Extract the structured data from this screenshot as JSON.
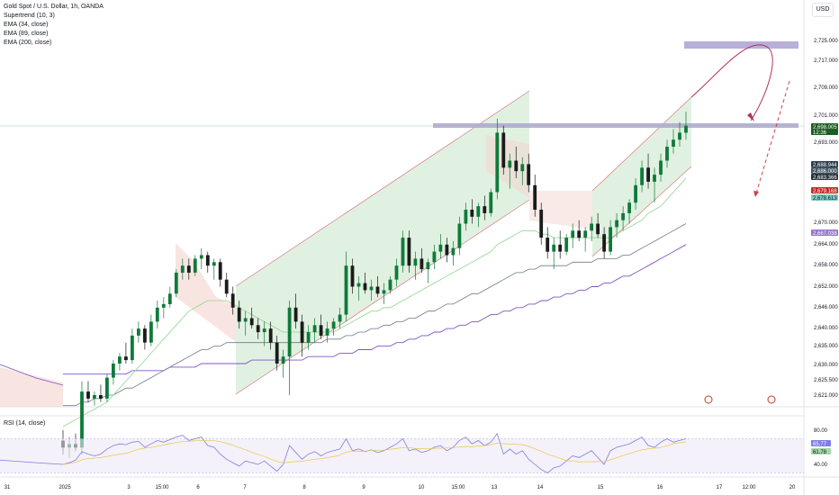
{
  "symbol_title": "Gold Spot / U.S. Dollar, 1h, OANDA",
  "currency": "USD",
  "indicators": [
    "Supertrend (10, 3)",
    "EMA (34, close)",
    "EMA (89, close)",
    "EMA (200, close)"
  ],
  "rsi_title": "RSI (14, close)",
  "colors": {
    "up": "#26a69a",
    "down": "#1b1b1b",
    "up_body": "#0f7a3a",
    "channel_fill": "#c8e6c9",
    "channel_line": "#d77a7a",
    "zone": "#b0a6d6",
    "ema34": "#8fd68f",
    "ema89": "#6d7a8a",
    "ema200": "#7e57c2",
    "rsi": "#7e7ee0"
  },
  "chart_data": {
    "type": "candlestick",
    "title": "Gold Spot / U.S. Dollar, 1h, OANDA",
    "y_ticks": [
      "2,725.000",
      "2,717.000",
      "2,709.000",
      "2,701.000",
      "2,693.000",
      "2,670.000",
      "2,664.000",
      "2,658.000",
      "2,652.000",
      "2,646.000",
      "2,640.000",
      "2,635.000",
      "2,630.000",
      "2,625.500",
      "2,621.000"
    ],
    "price_tags": [
      {
        "label": "2,698.005",
        "sub": "12:36",
        "color": "#1b5e20",
        "text_color": "#ffffff"
      },
      {
        "label": "2,688.944",
        "color": "#2e3b4e",
        "text_color": "#ffffff"
      },
      {
        "label": "2,686.000",
        "color": "#455a64",
        "text_color": "#ffffff"
      },
      {
        "label": "2,683.366",
        "color": "#263238",
        "text_color": "#ffffff"
      },
      {
        "label": "2,679.168",
        "color": "#c62828",
        "text_color": "#ffffff"
      },
      {
        "label": "2,678.613",
        "color": "#80cbc4",
        "text_color": "#131722"
      },
      {
        "label": "2,667.038",
        "color": "#9575cd",
        "text_color": "#ffffff"
      }
    ],
    "x_ticks": [
      "31",
      "2025",
      "3",
      "15:00",
      "6",
      "7",
      "8",
      "9",
      "10",
      "15:00",
      "13",
      "14",
      "15",
      "16",
      "17",
      "12:00",
      "20"
    ],
    "rsi_ticks": [
      "80.00",
      "40.00"
    ],
    "rsi_tags": [
      {
        "label": "65.77",
        "color": "#7e7ee0"
      },
      {
        "label": "61.78",
        "color": "#a5d6a7"
      }
    ],
    "candles": [
      [
        2608,
        2611,
        2604,
        2606
      ],
      [
        2606,
        2609,
        2603,
        2607
      ],
      [
        2607,
        2610,
        2605,
        2606
      ],
      [
        2606,
        2625,
        2604,
        2622
      ],
      [
        2622,
        2625,
        2619,
        2620
      ],
      [
        2620,
        2622,
        2618,
        2621
      ],
      [
        2621,
        2624,
        2619,
        2620
      ],
      [
        2620,
        2627,
        2619,
        2626
      ],
      [
        2626,
        2631,
        2624,
        2630
      ],
      [
        2630,
        2633,
        2628,
        2632
      ],
      [
        2632,
        2636,
        2630,
        2631
      ],
      [
        2631,
        2640,
        2630,
        2638
      ],
      [
        2638,
        2642,
        2636,
        2640
      ],
      [
        2640,
        2641,
        2634,
        2636
      ],
      [
        2636,
        2644,
        2635,
        2642
      ],
      [
        2642,
        2648,
        2640,
        2646
      ],
      [
        2646,
        2649,
        2643,
        2647
      ],
      [
        2647,
        2652,
        2646,
        2650
      ],
      [
        2650,
        2657,
        2649,
        2656
      ],
      [
        2656,
        2660,
        2654,
        2658
      ],
      [
        2658,
        2660,
        2654,
        2656
      ],
      [
        2656,
        2661,
        2655,
        2660
      ],
      [
        2660,
        2663,
        2657,
        2661
      ],
      [
        2661,
        2662,
        2656,
        2658
      ],
      [
        2658,
        2660,
        2654,
        2659
      ],
      [
        2659,
        2660,
        2652,
        2654
      ],
      [
        2654,
        2656,
        2649,
        2650
      ],
      [
        2650,
        2652,
        2644,
        2646
      ],
      [
        2646,
        2648,
        2640,
        2642
      ],
      [
        2642,
        2645,
        2638,
        2643
      ],
      [
        2643,
        2646,
        2640,
        2641
      ],
      [
        2641,
        2643,
        2637,
        2639
      ],
      [
        2639,
        2642,
        2635,
        2640
      ],
      [
        2640,
        2642,
        2634,
        2636
      ],
      [
        2636,
        2638,
        2628,
        2630
      ],
      [
        2630,
        2634,
        2626,
        2632
      ],
      [
        2632,
        2648,
        2621,
        2646
      ],
      [
        2646,
        2650,
        2640,
        2642
      ],
      [
        2642,
        2644,
        2632,
        2636
      ],
      [
        2636,
        2641,
        2634,
        2639
      ],
      [
        2639,
        2643,
        2636,
        2641
      ],
      [
        2641,
        2644,
        2637,
        2638
      ],
      [
        2638,
        2642,
        2636,
        2640
      ],
      [
        2640,
        2643,
        2638,
        2642
      ],
      [
        2642,
        2646,
        2640,
        2644
      ],
      [
        2644,
        2662,
        2642,
        2658
      ],
      [
        2658,
        2660,
        2650,
        2652
      ],
      [
        2652,
        2655,
        2648,
        2653
      ],
      [
        2653,
        2656,
        2650,
        2651
      ],
      [
        2651,
        2654,
        2648,
        2652
      ],
      [
        2652,
        2655,
        2649,
        2650
      ],
      [
        2650,
        2653,
        2647,
        2651
      ],
      [
        2651,
        2655,
        2650,
        2654
      ],
      [
        2654,
        2660,
        2652,
        2658
      ],
      [
        2658,
        2668,
        2656,
        2666
      ],
      [
        2666,
        2668,
        2656,
        2658
      ],
      [
        2658,
        2662,
        2654,
        2660
      ],
      [
        2660,
        2663,
        2656,
        2657
      ],
      [
        2657,
        2660,
        2653,
        2659
      ],
      [
        2659,
        2664,
        2657,
        2662
      ],
      [
        2662,
        2667,
        2660,
        2664
      ],
      [
        2664,
        2666,
        2659,
        2661
      ],
      [
        2661,
        2665,
        2658,
        2663
      ],
      [
        2663,
        2672,
        2661,
        2670
      ],
      [
        2670,
        2676,
        2668,
        2674
      ],
      [
        2674,
        2677,
        2670,
        2672
      ],
      [
        2672,
        2676,
        2669,
        2675
      ],
      [
        2675,
        2678,
        2671,
        2673
      ],
      [
        2673,
        2680,
        2672,
        2679
      ],
      [
        2679,
        2700,
        2677,
        2696
      ],
      [
        2696,
        2698,
        2684,
        2686
      ],
      [
        2686,
        2690,
        2680,
        2688
      ],
      [
        2688,
        2692,
        2683,
        2685
      ],
      [
        2685,
        2689,
        2681,
        2687
      ],
      [
        2687,
        2690,
        2679,
        2681
      ],
      [
        2681,
        2684,
        2672,
        2674
      ],
      [
        2674,
        2676,
        2664,
        2666
      ],
      [
        2666,
        2669,
        2660,
        2662
      ],
      [
        2662,
        2666,
        2657,
        2664
      ],
      [
        2664,
        2668,
        2660,
        2662
      ],
      [
        2662,
        2667,
        2661,
        2666
      ],
      [
        2666,
        2670,
        2663,
        2668
      ],
      [
        2668,
        2671,
        2665,
        2666
      ],
      [
        2666,
        2669,
        2662,
        2668
      ],
      [
        2668,
        2672,
        2665,
        2670
      ],
      [
        2670,
        2673,
        2666,
        2667
      ],
      [
        2667,
        2669,
        2660,
        2662
      ],
      [
        2662,
        2671,
        2661,
        2669
      ],
      [
        2669,
        2673,
        2666,
        2671
      ],
      [
        2671,
        2675,
        2668,
        2673
      ],
      [
        2673,
        2677,
        2670,
        2676
      ],
      [
        2676,
        2683,
        2674,
        2681
      ],
      [
        2681,
        2688,
        2679,
        2686
      ],
      [
        2686,
        2690,
        2680,
        2682
      ],
      [
        2682,
        2686,
        2676,
        2684
      ],
      [
        2684,
        2690,
        2682,
        2688
      ],
      [
        2688,
        2694,
        2686,
        2692
      ],
      [
        2692,
        2697,
        2690,
        2694
      ],
      [
        2694,
        2699,
        2692,
        2696
      ],
      [
        2696,
        2702,
        2694,
        2698
      ]
    ],
    "ema34": [
      2612,
      2613,
      2614,
      2615,
      2616,
      2617,
      2618,
      2619,
      2621,
      2623,
      2625,
      2627,
      2629,
      2631,
      2633,
      2635,
      2637,
      2639,
      2641,
      2643,
      2645,
      2646,
      2647,
      2648,
      2648,
      2648,
      2648,
      2647,
      2646,
      2645,
      2644,
      2643,
      2642,
      2641,
      2640,
      2639,
      2639,
      2639,
      2639,
      2639,
      2639,
      2639,
      2639,
      2639,
      2640,
      2641,
      2642,
      2643,
      2644,
      2645,
      2645,
      2646,
      2646,
      2647,
      2648,
      2649,
      2650,
      2651,
      2652,
      2653,
      2654,
      2655,
      2656,
      2657,
      2658,
      2659,
      2660,
      2661,
      2662,
      2664,
      2665,
      2666,
      2667,
      2668,
      2668,
      2668,
      2667,
      2667,
      2666,
      2666,
      2666,
      2666,
      2666,
      2666,
      2666,
      2666,
      2666,
      2666,
      2667,
      2668,
      2669,
      2670,
      2671,
      2673,
      2674,
      2675,
      2677,
      2679,
      2681,
      2683
    ],
    "ema89": [
      2618,
      2618,
      2618,
      2619,
      2619,
      2620,
      2620,
      2621,
      2621,
      2622,
      2623,
      2623,
      2624,
      2625,
      2626,
      2627,
      2628,
      2629,
      2630,
      2631,
      2632,
      2633,
      2634,
      2634,
      2635,
      2635,
      2636,
      2636,
      2636,
      2636,
      2636,
      2636,
      2636,
      2636,
      2636,
      2636,
      2636,
      2636,
      2636,
      2636,
      2636,
      2636,
      2637,
      2637,
      2637,
      2638,
      2638,
      2639,
      2639,
      2640,
      2640,
      2641,
      2641,
      2642,
      2642,
      2643,
      2643,
      2644,
      2645,
      2645,
      2646,
      2647,
      2647,
      2648,
      2649,
      2650,
      2650,
      2651,
      2652,
      2653,
      2654,
      2655,
      2656,
      2656,
      2657,
      2657,
      2658,
      2658,
      2658,
      2658,
      2658,
      2659,
      2659,
      2659,
      2659,
      2660,
      2660,
      2660,
      2660,
      2661,
      2661,
      2662,
      2663,
      2664,
      2665,
      2666,
      2667,
      2668,
      2669,
      2670
    ],
    "ema200": [
      2627,
      2627,
      2627,
      2627,
      2627,
      2627,
      2627,
      2627,
      2627,
      2627,
      2627,
      2628,
      2628,
      2628,
      2628,
      2628,
      2628,
      2629,
      2629,
      2629,
      2629,
      2629,
      2630,
      2630,
      2630,
      2630,
      2630,
      2630,
      2630,
      2630,
      2631,
      2631,
      2631,
      2631,
      2631,
      2631,
      2631,
      2631,
      2631,
      2632,
      2632,
      2632,
      2632,
      2632,
      2633,
      2633,
      2633,
      2634,
      2634,
      2634,
      2635,
      2635,
      2635,
      2636,
      2636,
      2637,
      2637,
      2638,
      2638,
      2639,
      2639,
      2640,
      2640,
      2641,
      2641,
      2642,
      2642,
      2643,
      2644,
      2644,
      2645,
      2645,
      2646,
      2646,
      2647,
      2647,
      2648,
      2648,
      2649,
      2649,
      2650,
      2650,
      2651,
      2651,
      2652,
      2652,
      2653,
      2653,
      2654,
      2655,
      2655,
      2656,
      2657,
      2658,
      2659,
      2660,
      2661,
      2662,
      2663,
      2664
    ],
    "rsi": [
      40,
      42,
      45,
      55,
      52,
      50,
      52,
      58,
      62,
      64,
      63,
      66,
      67,
      60,
      64,
      68,
      66,
      69,
      72,
      74,
      68,
      70,
      72,
      62,
      60,
      52,
      46,
      42,
      38,
      44,
      42,
      40,
      44,
      38,
      32,
      40,
      62,
      54,
      46,
      52,
      55,
      50,
      54,
      56,
      58,
      70,
      56,
      58,
      55,
      57,
      54,
      56,
      60,
      64,
      70,
      56,
      58,
      54,
      56,
      60,
      62,
      56,
      60,
      68,
      72,
      64,
      68,
      62,
      66,
      76,
      52,
      58,
      52,
      56,
      46,
      40,
      34,
      30,
      36,
      38,
      44,
      50,
      48,
      52,
      56,
      48,
      40,
      56,
      60,
      62,
      64,
      68,
      72,
      62,
      60,
      66,
      70,
      66,
      68,
      70
    ]
  }
}
